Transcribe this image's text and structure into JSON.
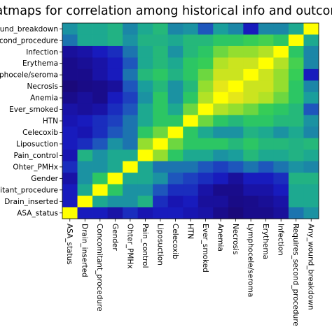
{
  "chart_data": {
    "type": "heatmap",
    "title": "heatmaps for correlation among historical info and outcomes",
    "xlabel": "",
    "ylabel": "",
    "y_labels": [
      "Any_wound_breakdown",
      "Requires_second_procedure",
      "Infection",
      "Erythema",
      "Lymphocele/seroma",
      "Necrosis",
      "Anemia",
      "Ever_smoked",
      "HTN",
      "Celecoxib",
      "Liposuction",
      "Pain_control",
      "Ohter_PMHx",
      "Gender",
      "Concomitant_procedure",
      "Drain_inserted",
      "ASA_status"
    ],
    "x_labels": [
      "ASA_status",
      "Drain_inserted",
      "Concomitant_procedure",
      "Gender",
      "Ohter_PMHx",
      "Pain_control",
      "Liposuction",
      "Celecoxib",
      "HTN",
      "Ever_smoked",
      "Anemia",
      "Necrosis",
      "Lymphocele/seroma",
      "Erythema",
      "Infection",
      "Requires_second_procedure",
      "Any_wound_breakdown"
    ],
    "visible_y_tick_text": [
      "ound_breakdown",
      "econd_procedure",
      "Infection",
      "Erythema",
      "phocele/seroma",
      "Necrosis",
      "Anemia",
      "Ever_smoked",
      "HTN",
      "Celecoxib",
      "Liposuction",
      "Pain_control",
      "Ohter_PMHx",
      "Gender",
      "itant_procedure",
      "Drain_inserted",
      "ASA_status"
    ],
    "visible_x_tick_text": [
      "ASA_status",
      "Drain_inserted",
      "Concomitant_procedure",
      "Gender",
      "Ohter_PMHx",
      "Pain_control",
      "Liposuction",
      "Celecoxib",
      "HTN",
      "Ever_smoked",
      "Anemia",
      "Necrosis",
      "Lymphocele/seroma",
      "Erythema",
      "Infection",
      "Requires_second_procedure",
      "Any_wound_breakdown"
    ],
    "colormap": "viridis-like (dark blue low, yellow high)",
    "colormap_stops": [
      "#1a0670",
      "#1818bd",
      "#1e4dc0",
      "#1aa39a",
      "#2fcc5a",
      "#9fe02a",
      "#e9e718",
      "#ffff00"
    ],
    "values": [
      [
        0.4,
        0.45,
        0.45,
        0.48,
        0.38,
        0.45,
        0.5,
        0.38,
        0.4,
        0.3,
        0.42,
        0.38,
        0.15,
        0.38,
        0.38,
        0.45,
        1.0
      ],
      [
        0.35,
        0.45,
        0.45,
        0.48,
        0.4,
        0.48,
        0.48,
        0.45,
        0.5,
        0.5,
        0.55,
        0.55,
        0.58,
        0.6,
        0.55,
        1.0,
        0.45
      ],
      [
        0.08,
        0.1,
        0.15,
        0.2,
        0.35,
        0.45,
        0.5,
        0.4,
        0.5,
        0.55,
        0.65,
        0.7,
        0.7,
        0.75,
        1.0,
        0.55,
        0.38
      ],
      [
        0.05,
        0.07,
        0.1,
        0.15,
        0.3,
        0.45,
        0.5,
        0.45,
        0.55,
        0.58,
        0.75,
        0.8,
        0.8,
        1.0,
        0.75,
        0.6,
        0.38
      ],
      [
        0.05,
        0.05,
        0.1,
        0.15,
        0.35,
        0.5,
        0.55,
        0.48,
        0.55,
        0.65,
        0.8,
        0.8,
        1.0,
        0.8,
        0.7,
        0.58,
        0.15
      ],
      [
        0.02,
        0.04,
        0.05,
        0.08,
        0.3,
        0.42,
        0.5,
        0.4,
        0.5,
        0.7,
        0.85,
        1.0,
        0.8,
        0.8,
        0.7,
        0.55,
        0.38
      ],
      [
        0.05,
        0.08,
        0.05,
        0.15,
        0.25,
        0.4,
        0.55,
        0.4,
        0.55,
        0.75,
        1.0,
        0.85,
        0.8,
        0.75,
        0.65,
        0.55,
        0.42
      ],
      [
        0.1,
        0.08,
        0.1,
        0.2,
        0.3,
        0.45,
        0.55,
        0.45,
        0.65,
        1.0,
        0.75,
        0.7,
        0.65,
        0.58,
        0.55,
        0.5,
        0.3
      ],
      [
        0.12,
        0.15,
        0.2,
        0.25,
        0.35,
        0.45,
        0.55,
        0.55,
        1.0,
        0.65,
        0.55,
        0.5,
        0.55,
        0.55,
        0.5,
        0.5,
        0.4
      ],
      [
        0.15,
        0.12,
        0.2,
        0.3,
        0.35,
        0.55,
        0.65,
        1.0,
        0.55,
        0.45,
        0.4,
        0.4,
        0.48,
        0.45,
        0.4,
        0.45,
        0.38
      ],
      [
        0.15,
        0.2,
        0.3,
        0.4,
        0.35,
        0.7,
        1.0,
        0.65,
        0.55,
        0.55,
        0.55,
        0.5,
        0.55,
        0.5,
        0.5,
        0.48,
        0.5
      ],
      [
        0.12,
        0.48,
        0.4,
        0.45,
        0.45,
        1.0,
        0.7,
        0.55,
        0.45,
        0.45,
        0.4,
        0.42,
        0.5,
        0.45,
        0.45,
        0.48,
        0.45
      ],
      [
        0.2,
        0.4,
        0.4,
        0.45,
        1.0,
        0.45,
        0.35,
        0.35,
        0.35,
        0.3,
        0.25,
        0.3,
        0.35,
        0.3,
        0.35,
        0.4,
        0.38
      ],
      [
        0.1,
        0.4,
        0.55,
        1.0,
        0.45,
        0.45,
        0.4,
        0.3,
        0.25,
        0.2,
        0.15,
        0.08,
        0.15,
        0.15,
        0.2,
        0.48,
        0.48
      ],
      [
        0.15,
        0.45,
        1.0,
        0.55,
        0.4,
        0.4,
        0.3,
        0.2,
        0.2,
        0.1,
        0.05,
        0.05,
        0.1,
        0.1,
        0.15,
        0.45,
        0.45
      ],
      [
        0.15,
        1.0,
        0.45,
        0.4,
        0.4,
        0.48,
        0.2,
        0.12,
        0.15,
        0.08,
        0.08,
        0.04,
        0.05,
        0.07,
        0.1,
        0.45,
        0.45
      ],
      [
        1.0,
        0.15,
        0.15,
        0.1,
        0.2,
        0.12,
        0.15,
        0.15,
        0.12,
        0.1,
        0.05,
        0.02,
        0.05,
        0.05,
        0.08,
        0.35,
        0.4
      ]
    ]
  }
}
